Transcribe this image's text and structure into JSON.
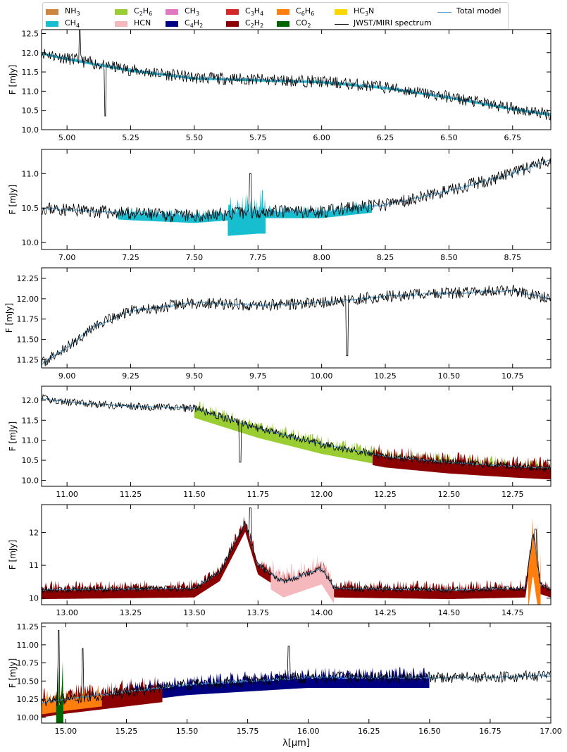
{
  "legend": {
    "entries": [
      {
        "label": "NH",
        "sub": "3",
        "tail": "",
        "color": "#cd853f",
        "kind": "patch"
      },
      {
        "label": "CH",
        "sub": "4",
        "tail": "",
        "color": "#17becf",
        "kind": "patch"
      },
      {
        "label": "C",
        "sub": "2",
        "tail": "H",
        "sub2": "6",
        "color": "#9acd32",
        "kind": "patch"
      },
      {
        "label": "HCN",
        "sub": "",
        "tail": "",
        "color": "#f4b8bd",
        "kind": "patch"
      },
      {
        "label": "CH",
        "sub": "3",
        "tail": "",
        "color": "#e377c2",
        "kind": "patch"
      },
      {
        "label": "C",
        "sub": "4",
        "tail": "H",
        "sub2": "2",
        "color": "#000080",
        "kind": "patch"
      },
      {
        "label": "C",
        "sub": "3",
        "tail": "H",
        "sub2": "4",
        "color": "#d62728",
        "kind": "patch"
      },
      {
        "label": "C",
        "sub": "2",
        "tail": "H",
        "sub2": "2",
        "color": "#8b0000",
        "kind": "patch"
      },
      {
        "label": "C",
        "sub": "6",
        "tail": "H",
        "sub2": "6",
        "color": "#ff7f0e",
        "kind": "patch"
      },
      {
        "label": "CO",
        "sub": "2",
        "tail": "",
        "color": "#006400",
        "kind": "patch"
      },
      {
        "label": "HC",
        "sub": "3",
        "tail": "N",
        "color": "#ffd700",
        "kind": "patch"
      },
      {
        "label": "JWST/MIRI spectrum",
        "sub": "",
        "tail": "",
        "color": "#000000",
        "kind": "line"
      },
      {
        "label": "Total model",
        "sub": "",
        "tail": "",
        "color": "#4c9fd1",
        "kind": "line"
      }
    ]
  },
  "chart_data": {
    "type": "line",
    "xlabel": "λ[μm]",
    "ylabel": "F [mJy]",
    "panels": [
      {
        "xlim": [
          4.9,
          6.9
        ],
        "ylim": [
          10.0,
          12.6
        ],
        "xticks": [
          "5.00",
          "5.25",
          "5.50",
          "5.75",
          "6.00",
          "6.25",
          "6.50",
          "6.75"
        ],
        "yticks": [
          "10.0",
          "10.5",
          "11.0",
          "11.5",
          "12.0",
          "12.5"
        ],
        "model": [
          [
            4.9,
            12.0
          ],
          [
            5.0,
            11.85
          ],
          [
            5.25,
            11.55
          ],
          [
            5.5,
            11.35
          ],
          [
            5.75,
            11.3
          ],
          [
            6.0,
            11.25
          ],
          [
            6.25,
            11.1
          ],
          [
            6.5,
            10.85
          ],
          [
            6.75,
            10.55
          ],
          [
            6.9,
            10.4
          ]
        ],
        "noise": 0.2,
        "seed": 11,
        "spikes": [
          [
            5.15,
            10.35
          ],
          [
            5.05,
            12.6
          ]
        ],
        "fills": [
          {
            "species": "CH4",
            "amp": 0.06,
            "x0": 4.9,
            "x1": 6.9
          }
        ]
      },
      {
        "xlim": [
          6.9,
          8.9
        ],
        "ylim": [
          9.9,
          11.35
        ],
        "xticks": [
          "7.00",
          "7.25",
          "7.50",
          "7.75",
          "8.00",
          "8.25",
          "8.50",
          "8.75"
        ],
        "yticks": [
          "10.0",
          "10.5",
          "11.0"
        ],
        "model": [
          [
            6.9,
            10.5
          ],
          [
            7.25,
            10.42
          ],
          [
            7.5,
            10.38
          ],
          [
            7.75,
            10.45
          ],
          [
            8.0,
            10.45
          ],
          [
            8.25,
            10.55
          ],
          [
            8.5,
            10.75
          ],
          [
            8.75,
            11.0
          ],
          [
            8.9,
            11.2
          ]
        ],
        "noise": 0.12,
        "seed": 23,
        "spikes": [
          [
            7.72,
            11.0
          ]
        ],
        "fills": [
          {
            "species": "CH4",
            "amp": 0.12,
            "x0": 7.2,
            "x1": 8.2
          },
          {
            "species": "CH4",
            "amp": 0.4,
            "x0": 7.63,
            "x1": 7.78
          }
        ]
      },
      {
        "xlim": [
          8.9,
          10.9
        ],
        "ylim": [
          11.15,
          12.38
        ],
        "xticks": [
          "9.00",
          "9.25",
          "9.50",
          "9.75",
          "10.00",
          "10.25",
          "10.50",
          "10.75"
        ],
        "yticks": [
          "11.25",
          "11.50",
          "11.75",
          "12.00",
          "12.25"
        ],
        "model": [
          [
            8.9,
            11.2
          ],
          [
            9.0,
            11.4
          ],
          [
            9.1,
            11.65
          ],
          [
            9.25,
            11.85
          ],
          [
            9.5,
            11.95
          ],
          [
            9.75,
            11.92
          ],
          [
            10.0,
            11.95
          ],
          [
            10.25,
            12.03
          ],
          [
            10.5,
            12.07
          ],
          [
            10.75,
            12.1
          ],
          [
            10.9,
            12.0
          ]
        ],
        "noise": 0.09,
        "seed": 37,
        "spikes": [
          [
            10.1,
            11.3
          ]
        ],
        "fills": []
      },
      {
        "xlim": [
          10.9,
          12.9
        ],
        "ylim": [
          9.85,
          12.35
        ],
        "xticks": [
          "11.00",
          "11.25",
          "11.50",
          "11.75",
          "12.00",
          "12.25",
          "12.50",
          "12.75"
        ],
        "yticks": [
          "10.0",
          "10.5",
          "11.0",
          "11.5",
          "12.0"
        ],
        "model": [
          [
            10.9,
            12.05
          ],
          [
            11.0,
            11.95
          ],
          [
            11.25,
            11.85
          ],
          [
            11.5,
            11.8
          ],
          [
            11.75,
            11.3
          ],
          [
            12.0,
            10.9
          ],
          [
            12.25,
            10.6
          ],
          [
            12.5,
            10.45
          ],
          [
            12.75,
            10.35
          ],
          [
            12.9,
            10.3
          ]
        ],
        "noise": 0.12,
        "seed": 41,
        "spikes": [
          [
            11.68,
            10.45
          ]
        ],
        "fills": [
          {
            "species": "C2H6",
            "amp": 0.3,
            "x0": 11.5,
            "x1": 12.9
          },
          {
            "species": "C2H2",
            "amp": 0.35,
            "x0": 12.2,
            "x1": 12.9
          }
        ]
      },
      {
        "xlim": [
          12.9,
          14.9
        ],
        "ylim": [
          9.8,
          12.85
        ],
        "xticks": [
          "13.00",
          "13.25",
          "13.50",
          "13.75",
          "14.00",
          "14.25",
          "14.50",
          "14.75"
        ],
        "yticks": [
          "10",
          "11",
          "12"
        ],
        "model": [
          [
            12.9,
            10.25
          ],
          [
            13.5,
            10.3
          ],
          [
            13.6,
            10.8
          ],
          [
            13.7,
            12.3
          ],
          [
            13.75,
            11.0
          ],
          [
            13.85,
            10.5
          ],
          [
            14.0,
            10.9
          ],
          [
            14.05,
            10.3
          ],
          [
            14.5,
            10.25
          ],
          [
            14.8,
            10.3
          ],
          [
            14.83,
            12.0
          ],
          [
            14.86,
            10.4
          ],
          [
            14.9,
            10.3
          ]
        ],
        "noise": 0.12,
        "seed": 53,
        "spikes": [
          [
            13.72,
            12.75
          ],
          [
            14.84,
            12.1
          ]
        ],
        "fills": [
          {
            "species": "C2H2",
            "amp": 0.35,
            "x0": 12.9,
            "x1": 14.9
          },
          {
            "species": "HCN",
            "amp": 0.6,
            "x0": 13.8,
            "x1": 14.05
          },
          {
            "species": "C6H6",
            "amp": 1.6,
            "x0": 14.81,
            "x1": 14.86
          }
        ]
      },
      {
        "xlim": [
          14.9,
          17.0
        ],
        "ylim": [
          9.92,
          11.3
        ],
        "xticks": [
          "15.00",
          "15.25",
          "15.50",
          "15.75",
          "16.00",
          "16.25",
          "16.50",
          "16.75",
          "17.00"
        ],
        "yticks": [
          "10.00",
          "10.25",
          "10.50",
          "10.75",
          "11.00",
          "11.25"
        ],
        "model": [
          [
            14.9,
            10.2
          ],
          [
            15.0,
            10.25
          ],
          [
            15.25,
            10.35
          ],
          [
            15.5,
            10.45
          ],
          [
            15.75,
            10.5
          ],
          [
            16.0,
            10.55
          ],
          [
            16.25,
            10.55
          ],
          [
            16.5,
            10.55
          ],
          [
            16.75,
            10.55
          ],
          [
            17.0,
            10.58
          ]
        ],
        "noise": 0.1,
        "seed": 67,
        "spikes": [
          [
            14.97,
            11.2
          ],
          [
            15.07,
            10.95
          ],
          [
            15.92,
            10.98
          ]
        ],
        "fills": [
          {
            "species": "C4H2",
            "amp": 0.18,
            "x0": 15.2,
            "x1": 16.5
          },
          {
            "species": "C2H2",
            "amp": 0.25,
            "x0": 14.9,
            "x1": 15.4
          },
          {
            "species": "C6H6",
            "amp": 0.2,
            "x0": 14.9,
            "x1": 15.15
          },
          {
            "species": "CO2",
            "amp": 0.7,
            "x0": 14.96,
            "x1": 14.99
          }
        ]
      }
    ]
  }
}
